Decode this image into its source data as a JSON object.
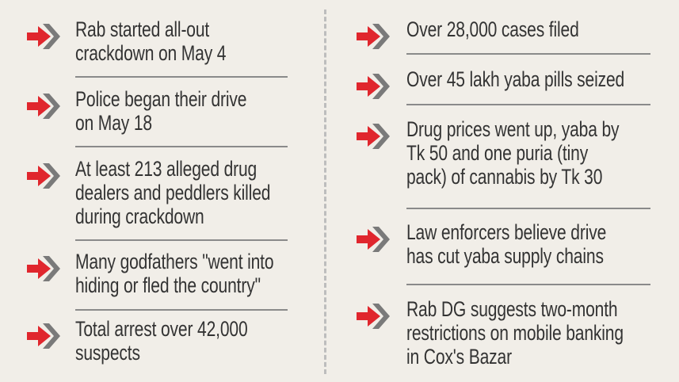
{
  "colors": {
    "arrow": "#e0262d",
    "chevron": "#7a7a7a",
    "background": "#f1eee8",
    "text": "#333333"
  },
  "left": [
    {
      "lines": [
        "Rab started all-out",
        "crackdown on May 4"
      ]
    },
    {
      "lines": [
        "Police began their drive",
        "on May 18"
      ]
    },
    {
      "lines": [
        "At least 213 alleged drug",
        "dealers and peddlers killed",
        "during crackdown"
      ]
    },
    {
      "lines": [
        "Many godfathers \"went into",
        "hiding or fled the country\""
      ]
    },
    {
      "lines": [
        "Total arrest over 42,000",
        "suspects"
      ]
    }
  ],
  "right": [
    {
      "lines": [
        "Over 28,000 cases filed"
      ]
    },
    {
      "lines": [
        "Over 45 lakh yaba pills seized"
      ]
    },
    {
      "lines": [
        "Drug prices went up, yaba by",
        "Tk 50 and one puria (tiny",
        "pack) of cannabis by Tk 30"
      ]
    },
    {
      "lines": [
        "Law enforcers believe drive",
        "has cut yaba supply chains"
      ]
    },
    {
      "lines": [
        "Rab DG suggests two-month",
        "restrictions on mobile banking",
        "in Cox's Bazar"
      ]
    }
  ]
}
